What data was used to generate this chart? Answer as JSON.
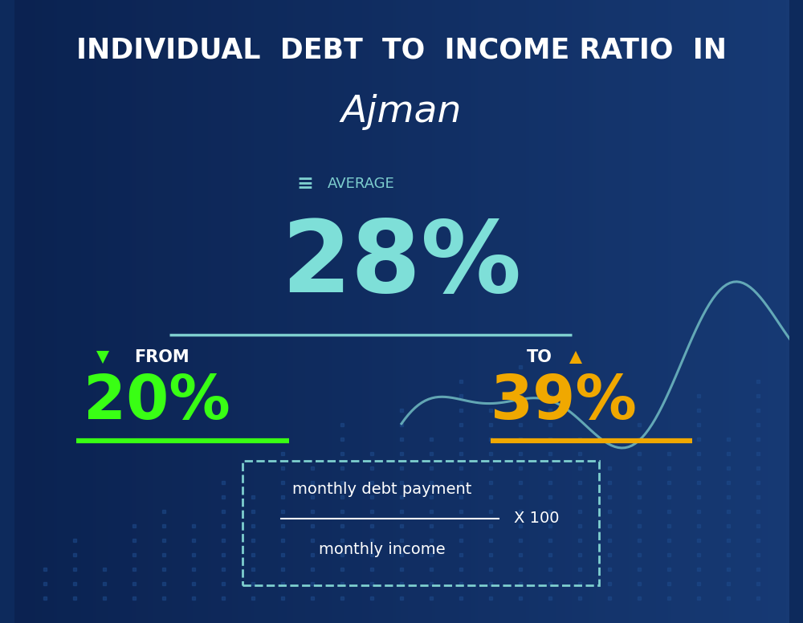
{
  "title_line1": "INDIVIDUAL  DEBT  TO  INCOME RATIO  IN",
  "title_line2": "Ajman",
  "average_label": "AVERAGE",
  "average_value": "28%",
  "from_label": "FROM",
  "from_value": "20%",
  "to_label": "TO",
  "to_value": "39%",
  "formula_numerator": "monthly debt payment",
  "formula_denominator": "monthly income",
  "formula_multiplier": "X 100",
  "bg_color": "#0d2a5c",
  "bg_color2": "#1a3a7a",
  "title1_color": "#ffffff",
  "title2_color": "#ffffff",
  "average_label_color": "#7ecfcf",
  "average_value_color": "#7edfd8",
  "from_label_color": "#ffffff",
  "from_value_color": "#39ff14",
  "to_label_color": "#ffffff",
  "to_value_color": "#f0a800",
  "underline_from_color": "#39ff14",
  "underline_to_color": "#f0a800",
  "underline_avg_color": "#7ecfcf",
  "formula_text_color": "#ffffff",
  "dashed_box_color": "#7ecfcf",
  "down_arrow_color": "#39ff14",
  "up_arrow_color": "#f0a800",
  "eq_icon_color": "#7ecfcf",
  "line_color": "#7ecfcf",
  "dot_color": "#1e4a8a"
}
